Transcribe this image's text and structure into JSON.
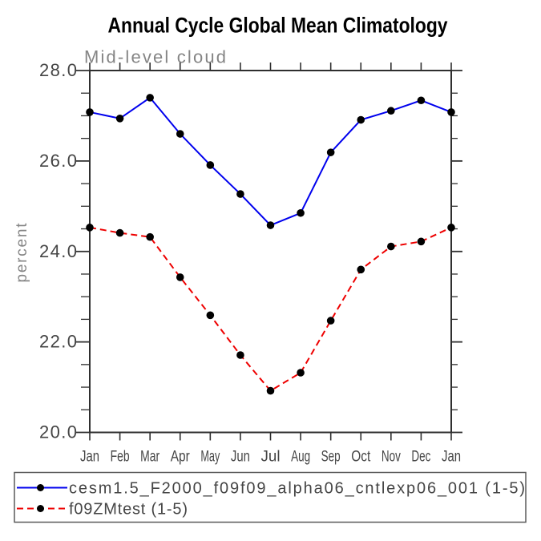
{
  "chart_data": {
    "type": "line",
    "title": "Annual Cycle Global Mean Climatology",
    "subtitle": "Mid-level cloud",
    "xlabel": "",
    "ylabel": "percent",
    "categories": [
      "Jan",
      "Feb",
      "Mar",
      "Apr",
      "May",
      "Jun",
      "Jul",
      "Aug",
      "Sep",
      "Oct",
      "Nov",
      "Dec",
      "Jan"
    ],
    "ylim": [
      20.0,
      28.0
    ],
    "ytick_major": [
      20.0,
      22.0,
      24.0,
      26.0,
      28.0
    ],
    "ytick_major_labels": [
      "20.0",
      "22.0",
      "24.0",
      "26.0",
      "28.0"
    ],
    "ytick_minor_step": 0.5,
    "grid": false,
    "legend_position": "below-plot-boxed",
    "series": [
      {
        "name": "cesm1.5_F2000_f09f09_alpha06_cntlexp06_001 (1-5)",
        "color": "#0000ee",
        "line_style": "solid",
        "marker": "filled-circle",
        "marker_color": "#000000",
        "values": [
          27.08,
          26.94,
          27.4,
          26.6,
          25.91,
          25.27,
          24.58,
          24.85,
          26.19,
          26.91,
          27.11,
          27.34,
          27.08
        ]
      },
      {
        "name": "f09ZMtest (1-5)",
        "color": "#ee0000",
        "line_style": "dashed",
        "marker": "filled-circle",
        "marker_color": "#000000",
        "values": [
          24.53,
          24.41,
          24.32,
          23.43,
          22.59,
          21.71,
          20.92,
          21.32,
          22.47,
          23.6,
          24.11,
          24.22,
          24.53
        ]
      }
    ]
  },
  "colors": {
    "background": "#ffffff",
    "title": "#000000",
    "axis": "#2f2f2f",
    "tick_label": "#454545",
    "muted_label": "#858585",
    "legend_border": "#5a5a5a",
    "legend_text": "#454545"
  }
}
